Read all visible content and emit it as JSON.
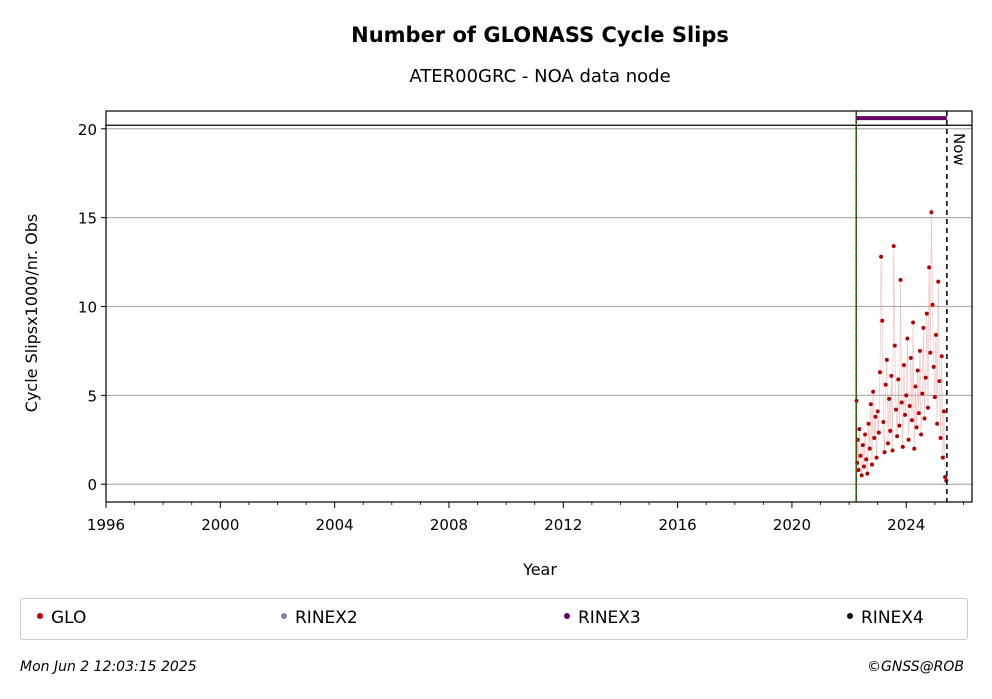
{
  "chart_data": {
    "type": "scatter",
    "title": "Number of GLONASS Cycle Slips",
    "subtitle": "ATER00GRC - NOA data node",
    "xlabel": "Year",
    "ylabel": "Cycle Slipsx1000/nr. Obs",
    "xlim": [
      1996,
      2026.3
    ],
    "ylim": [
      -1,
      21
    ],
    "x_ticks": [
      1996,
      2000,
      2004,
      2008,
      2012,
      2016,
      2020,
      2024
    ],
    "y_ticks": [
      0,
      5,
      10,
      15,
      20
    ],
    "grid": "horizontal",
    "reference_line_y": 20.2,
    "start_line_x": 2022.25,
    "now_line": {
      "x": 2025.42,
      "label": "Now"
    },
    "rinex3_bar": {
      "x_start": 2022.25,
      "x_end": 2025.42,
      "y": 20.6
    },
    "series": [
      {
        "name": "GLO",
        "color": "#b30000",
        "x": [
          2022.26,
          2022.28,
          2022.3,
          2022.33,
          2022.36,
          2022.4,
          2022.44,
          2022.48,
          2022.52,
          2022.56,
          2022.6,
          2022.64,
          2022.68,
          2022.72,
          2022.76,
          2022.8,
          2022.84,
          2022.88,
          2022.92,
          2022.96,
          2023.0,
          2023.04,
          2023.08,
          2023.12,
          2023.16,
          2023.2,
          2023.24,
          2023.28,
          2023.32,
          2023.36,
          2023.4,
          2023.44,
          2023.48,
          2023.52,
          2023.56,
          2023.6,
          2023.64,
          2023.68,
          2023.72,
          2023.76,
          2023.8,
          2023.84,
          2023.88,
          2023.92,
          2023.96,
          2024.0,
          2024.04,
          2024.08,
          2024.12,
          2024.16,
          2024.2,
          2024.24,
          2024.28,
          2024.32,
          2024.36,
          2024.4,
          2024.44,
          2024.48,
          2024.52,
          2024.56,
          2024.6,
          2024.64,
          2024.68,
          2024.72,
          2024.76,
          2024.8,
          2024.84,
          2024.88,
          2024.92,
          2024.96,
          2025.0,
          2025.04,
          2025.08,
          2025.12,
          2025.16,
          2025.2,
          2025.24,
          2025.28,
          2025.32,
          2025.36,
          2025.4
        ],
        "y": [
          4.7,
          1.2,
          2.5,
          0.8,
          3.1,
          1.6,
          0.5,
          2.2,
          1.0,
          2.8,
          1.4,
          0.6,
          3.4,
          2.0,
          4.5,
          1.1,
          5.2,
          2.6,
          3.8,
          1.5,
          4.1,
          2.9,
          6.3,
          12.8,
          9.2,
          3.5,
          1.8,
          5.6,
          7.0,
          2.3,
          4.8,
          3.0,
          6.1,
          1.9,
          13.4,
          7.8,
          4.2,
          2.7,
          5.9,
          3.3,
          11.5,
          4.6,
          2.1,
          6.7,
          3.9,
          5.0,
          8.2,
          2.5,
          4.4,
          7.1,
          3.6,
          9.1,
          2.0,
          5.5,
          3.2,
          6.4,
          4.0,
          7.5,
          2.8,
          5.1,
          8.8,
          3.7,
          6.0,
          9.6,
          4.3,
          12.2,
          7.4,
          15.3,
          10.1,
          6.6,
          4.9,
          8.4,
          3.4,
          11.4,
          5.8,
          2.6,
          7.2,
          1.5,
          4.1,
          0.4,
          0.2
        ]
      },
      {
        "name": "RINEX2",
        "color": "#7f7fbf",
        "x": [],
        "y": []
      },
      {
        "name": "RINEX3",
        "color": "#660066",
        "x": [],
        "y": []
      },
      {
        "name": "RINEX4",
        "color": "#1a0020",
        "x": [],
        "y": []
      }
    ]
  },
  "footer": {
    "timestamp": "Mon Jun  2 12:03:15 2025",
    "credit": "©GNSS@ROB"
  }
}
